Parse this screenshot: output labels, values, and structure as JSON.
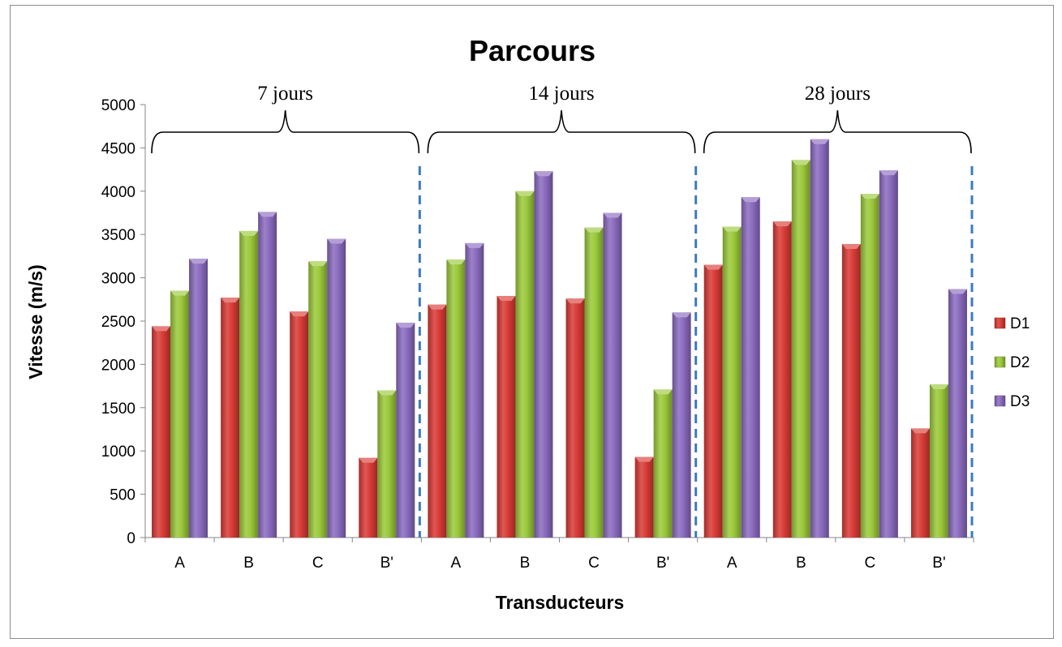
{
  "chart_data": {
    "type": "bar",
    "title": "Parcours",
    "xlabel": "Transducteurs",
    "ylabel": "Vitesse (m/s)",
    "ylim": [
      0,
      5000
    ],
    "yticks": [
      0,
      500,
      1000,
      1500,
      2000,
      2500,
      3000,
      3500,
      4000,
      4500,
      5000
    ],
    "grid": false,
    "legend_position": "right",
    "categories": [
      "A",
      "B",
      "C",
      "B'",
      "A",
      "B",
      "C",
      "B'",
      "A",
      "B",
      "C",
      "B'"
    ],
    "groups": [
      {
        "label": "7 jours",
        "categories": [
          "A",
          "B",
          "C",
          "B'"
        ]
      },
      {
        "label": "14 jours",
        "categories": [
          "A",
          "B",
          "C",
          "B'"
        ]
      },
      {
        "label": "28 jours",
        "categories": [
          "A",
          "B",
          "C",
          "B'"
        ]
      }
    ],
    "series": [
      {
        "name": "D1",
        "color": "#d93b36",
        "values": [
          2440,
          2770,
          2610,
          920,
          2690,
          2790,
          2760,
          930,
          3150,
          3650,
          3390,
          1260
        ]
      },
      {
        "name": "D2",
        "color": "#9bc93a",
        "values": [
          2850,
          3540,
          3190,
          1700,
          3210,
          4000,
          3580,
          1710,
          3590,
          4360,
          3970,
          1770
        ]
      },
      {
        "name": "D3",
        "color": "#8a6bbf",
        "values": [
          3220,
          3760,
          3450,
          2480,
          3400,
          4230,
          3750,
          2600,
          3930,
          4600,
          4240,
          2870
        ]
      }
    ]
  }
}
